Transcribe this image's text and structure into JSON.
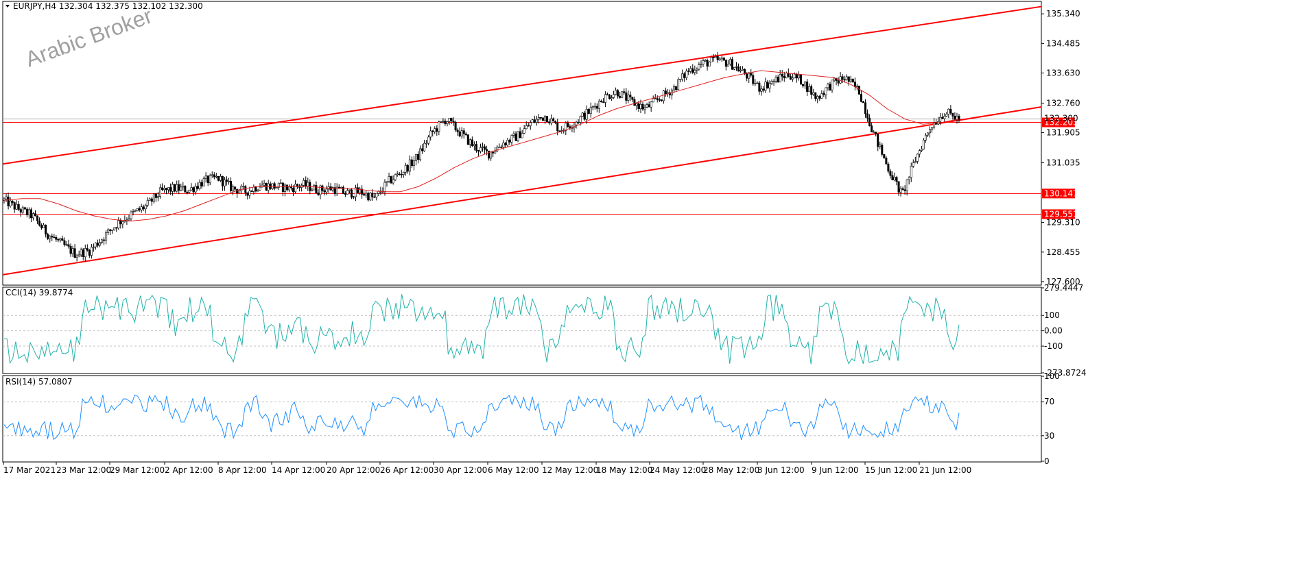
{
  "window": {
    "symbol_info": "EURJPY,H4  132.304 132.375 132.102 132.300",
    "watermark": "Arabic Broker"
  },
  "colors": {
    "channel": "#ff0000",
    "ma": "#e02020",
    "support": "#ff0000",
    "price_label_bg": "#ff0000",
    "cci": "#20b2aa",
    "rsi": "#1e90ff",
    "bull": "#ffffff",
    "bear": "#000000"
  },
  "chart_data": [
    {
      "type": "candlestick",
      "title": "EURJPY,H4  132.304 132.375 132.102 132.300",
      "x_labels": [
        "17 Mar 2021",
        "23 Mar 12:00",
        "29 Mar 12:00",
        "2 Apr 12:00",
        "8 Apr 12:00",
        "14 Apr 12:00",
        "20 Apr 12:00",
        "26 Apr 12:00",
        "30 Apr 12:00",
        "6 May 12:00",
        "12 May 12:00",
        "18 May 12:00",
        "24 May 12:00",
        "28 May 12:00",
        "3 Jun 12:00",
        "9 Jun 12:00",
        "15 Jun 12:00",
        "21 Jun 12:00"
      ],
      "y_ticks": [
        "135.340",
        "134.485",
        "133.630",
        "132.760",
        "131.905",
        "131.035",
        "129.310",
        "128.455",
        "127.600"
      ],
      "ylim": [
        127.5,
        135.7
      ],
      "close_path": [
        129.95,
        129.7,
        129.5,
        129.0,
        128.7,
        128.4,
        128.5,
        128.9,
        129.3,
        129.55,
        129.8,
        130.2,
        130.3,
        130.25,
        130.5,
        130.6,
        130.3,
        130.2,
        130.4,
        130.35,
        130.3,
        130.4,
        130.25,
        130.3,
        130.15,
        130.2,
        130.0,
        130.5,
        130.8,
        131.2,
        131.9,
        132.3,
        131.9,
        131.5,
        131.3,
        131.6,
        131.8,
        132.2,
        132.4,
        132.0,
        132.2,
        132.5,
        132.9,
        133.1,
        132.8,
        132.6,
        132.9,
        133.2,
        133.7,
        133.9,
        134.0,
        133.9,
        133.6,
        133.2,
        133.4,
        133.6,
        133.4,
        132.9,
        133.3,
        133.5,
        133.1,
        131.9,
        130.9,
        130.1,
        131.2,
        132.1,
        132.5,
        132.3
      ],
      "ma_path": [
        129.95,
        130.0,
        130.0,
        129.85,
        129.65,
        129.5,
        129.4,
        129.35,
        129.4,
        129.5,
        129.65,
        129.85,
        130.05,
        130.25,
        130.35,
        130.35,
        130.35,
        130.35,
        130.3,
        130.3,
        130.25,
        130.2,
        130.2,
        130.35,
        130.6,
        130.9,
        131.15,
        131.35,
        131.5,
        131.65,
        131.8,
        131.95,
        132.15,
        132.4,
        132.6,
        132.75,
        132.9,
        133.05,
        133.2,
        133.35,
        133.5,
        133.6,
        133.7,
        133.65,
        133.6,
        133.55,
        133.5,
        133.3,
        133.0,
        132.6,
        132.3,
        132.15,
        132.2,
        132.3
      ],
      "channel_upper": {
        "start": 131.0,
        "end": 135.55
      },
      "channel_lower": {
        "start": 127.8,
        "end": 132.65
      },
      "horizontal_levels": [
        {
          "value": 132.203,
          "label": "132.203"
        },
        {
          "value": 130.147,
          "label": "130.147"
        },
        {
          "value": 129.551,
          "label": "129.551"
        }
      ],
      "current_price": {
        "value": 132.3,
        "label": "132.300"
      }
    },
    {
      "type": "line",
      "title": "CCI(14) 39.8774",
      "series_label": "CCI(14)",
      "value_label": "39.8774",
      "y_ticks": [
        "279.4447",
        "100",
        "0.00",
        "-100",
        "-273.8724"
      ],
      "ylim": [
        -273.8724,
        279.4447
      ],
      "levels": [
        100,
        0,
        -100
      ],
      "seed": 7,
      "last": 39.88
    },
    {
      "type": "line",
      "title": "RSI(14) 57.0807",
      "series_label": "RSI(14)",
      "value_label": "57.0807",
      "y_ticks": [
        "100",
        "70",
        "30",
        "0"
      ],
      "ylim": [
        0,
        100
      ],
      "levels": [
        70,
        30
      ],
      "last": 57.08
    }
  ]
}
